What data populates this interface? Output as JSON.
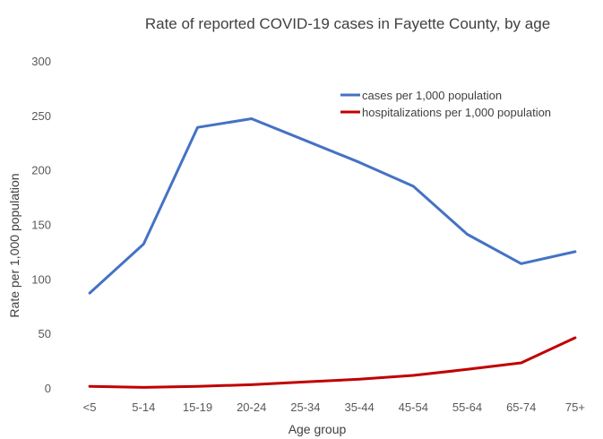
{
  "chart_data": {
    "type": "line",
    "title": "Rate of reported COVID-19 cases in Fayette County, by age",
    "xlabel": "Age group",
    "ylabel": "Rate per 1,000 population",
    "categories": [
      "<5",
      "5-14",
      "15-19",
      "20-24",
      "25-34",
      "35-44",
      "45-54",
      "55-64",
      "65-74",
      "75+"
    ],
    "ylim": [
      0,
      300
    ],
    "yticks": [
      0,
      50,
      100,
      150,
      200,
      250,
      300
    ],
    "grid": false,
    "legend_position": "top-right",
    "series": [
      {
        "name": "cases per 1,000 population",
        "color": "#4472C4",
        "values": [
          87,
          132,
          239,
          247,
          227,
          207,
          185,
          141,
          114,
          125
        ]
      },
      {
        "name": "hospitalizations per 1,000 population",
        "color": "#C00000",
        "values": [
          1.5,
          0.5,
          1.5,
          3,
          5.5,
          8,
          11.5,
          17,
          23,
          46
        ]
      }
    ]
  }
}
